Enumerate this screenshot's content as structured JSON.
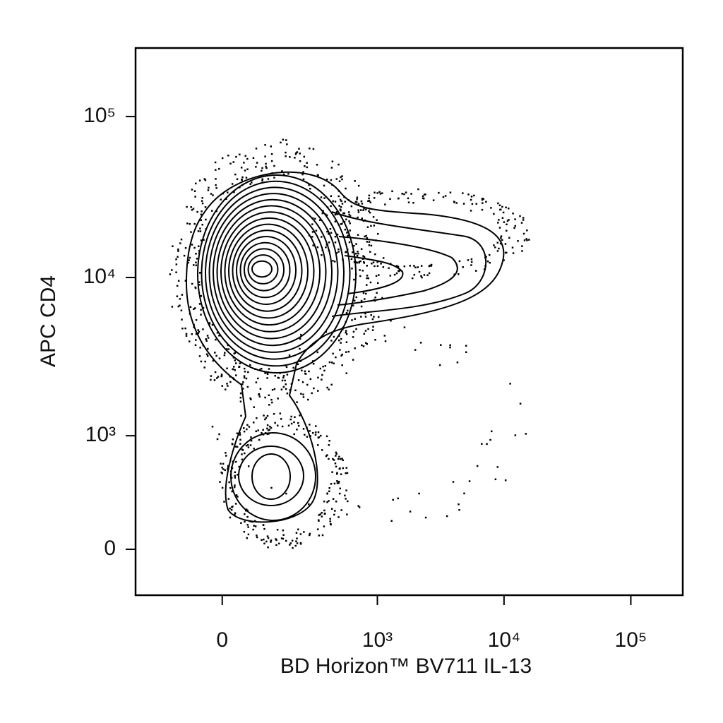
{
  "chart_data": {
    "type": "contour",
    "x_label": "BD Horizon™ BV711 IL-13",
    "y_label": "APC CD4",
    "x_scale": "biexponential",
    "y_scale": "biexponential",
    "xlim": [
      -277,
      256700
    ],
    "ylim": [
      -289,
      266600
    ],
    "xticks": [
      0,
      {
        "value": 1000,
        "label": "10³"
      },
      {
        "value": 10000,
        "label": "10⁴"
      },
      {
        "value": 100000,
        "label": "10⁵"
      }
    ],
    "yticks": [
      0,
      {
        "value": 1000,
        "label": "10³"
      },
      {
        "value": 10000,
        "label": "10⁴"
      },
      {
        "value": 100000,
        "label": "10⁵"
      }
    ],
    "color": "#000000"
  }
}
